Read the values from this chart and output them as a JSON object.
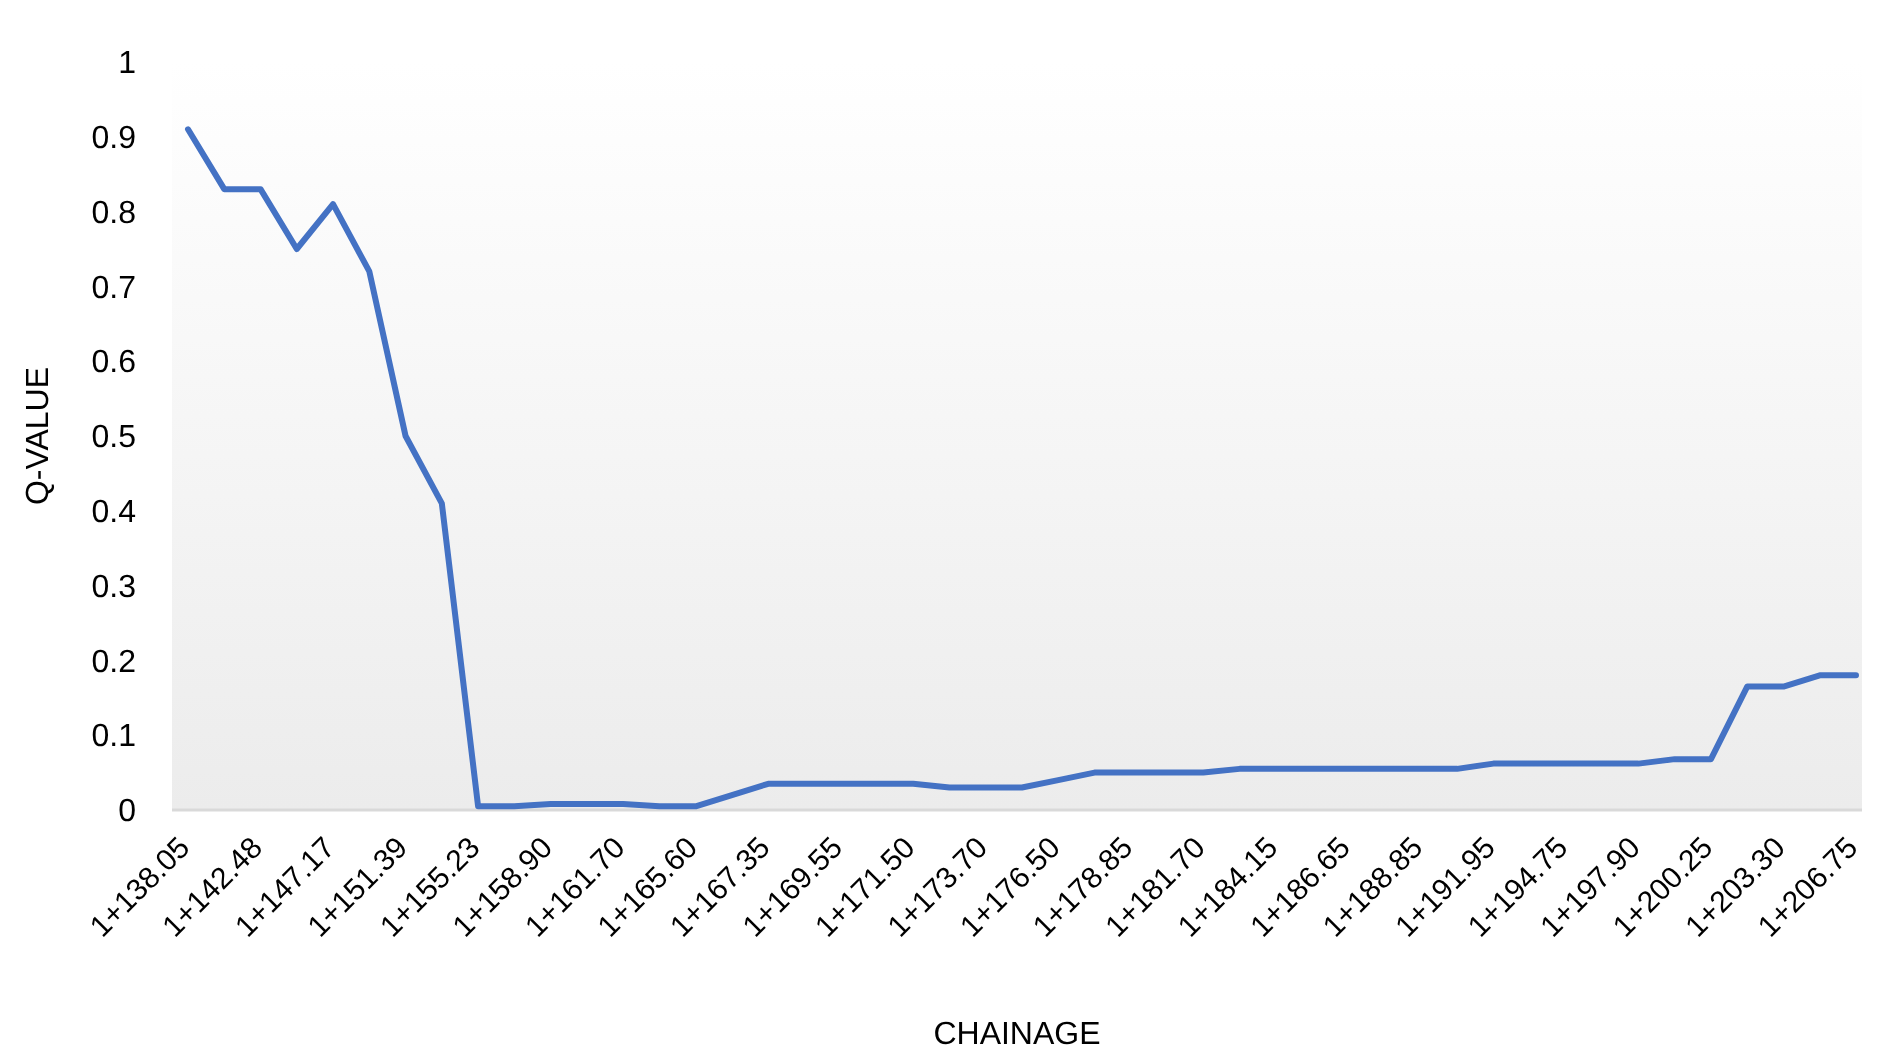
{
  "chart_data": {
    "type": "line",
    "xlabel": "CHAINAGE",
    "ylabel": "Q-VALUE",
    "categories": [
      "1+138.05",
      null,
      "1+142.48",
      null,
      "1+147.17",
      null,
      "1+151.39",
      null,
      "1+155.23",
      null,
      "1+158.90",
      null,
      "1+161.70",
      null,
      "1+165.60",
      null,
      "1+167.35",
      null,
      "1+169.55",
      null,
      "1+171.50",
      null,
      "1+173.70",
      null,
      "1+176.50",
      null,
      "1+178.85",
      null,
      "1+181.70",
      null,
      "1+184.15",
      null,
      "1+186.65",
      null,
      "1+188.85",
      null,
      "1+191.95",
      null,
      "1+194.75",
      null,
      "1+197.90",
      null,
      "1+200.25",
      null,
      "1+203.30",
      null,
      "1+206.75"
    ],
    "series": [
      {
        "color": "#4472c4",
        "values": [
          0.91,
          0.83,
          0.83,
          0.75,
          0.81,
          0.72,
          0.5,
          0.41,
          0.005,
          0.005,
          0.008,
          0.008,
          0.008,
          0.005,
          0.005,
          0.02,
          0.035,
          0.035,
          0.035,
          0.035,
          0.035,
          0.03,
          0.03,
          0.03,
          0.04,
          0.05,
          0.05,
          0.05,
          0.05,
          0.055,
          0.055,
          0.055,
          0.055,
          0.055,
          0.055,
          0.055,
          0.062,
          0.062,
          0.062,
          0.062,
          0.062,
          0.068,
          0.068,
          0.165,
          0.165,
          0.18,
          0.18
        ]
      }
    ],
    "ylim": [
      0,
      1
    ],
    "yticks": [
      0,
      0.1,
      0.2,
      0.3,
      0.4,
      0.5,
      0.6,
      0.7,
      0.8,
      0.9,
      1
    ],
    "grid": false,
    "marker": "none",
    "line_style": "solid"
  }
}
